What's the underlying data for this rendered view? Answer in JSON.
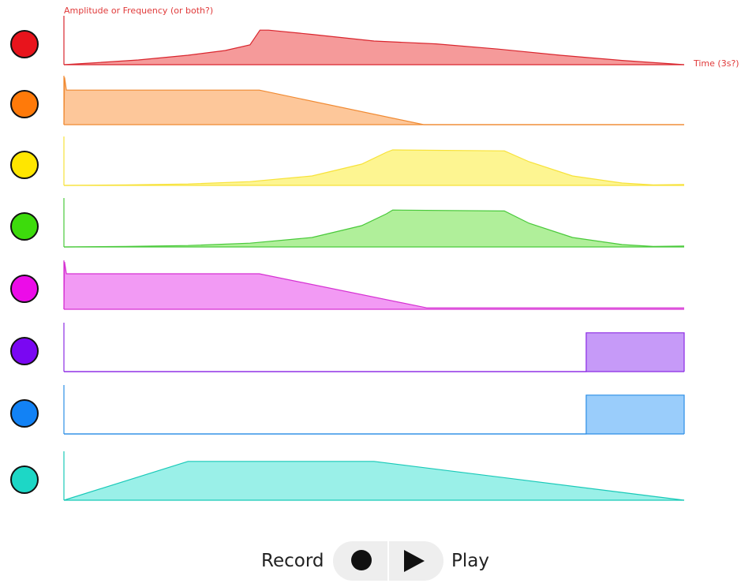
{
  "axis": {
    "y_label": "Amplitude or Frequency (or both?)",
    "x_label": "Time (3s?)",
    "label_color": "#e03a3a"
  },
  "tracks": [
    {
      "name": "red",
      "dot_color": "#e8141c",
      "line_color": "#d9262e",
      "fill_color": "#f59a9a",
      "envelope": [
        [
          0,
          0.0
        ],
        [
          0.05,
          0.04
        ],
        [
          0.12,
          0.1
        ],
        [
          0.2,
          0.2
        ],
        [
          0.26,
          0.3
        ],
        [
          0.3,
          0.42
        ],
        [
          0.316,
          0.73
        ],
        [
          0.33,
          0.73
        ],
        [
          0.4,
          0.64
        ],
        [
          0.5,
          0.5
        ],
        [
          0.6,
          0.44
        ],
        [
          0.7,
          0.33
        ],
        [
          0.8,
          0.2
        ],
        [
          0.9,
          0.09
        ],
        [
          1.0,
          0.0
        ]
      ]
    },
    {
      "name": "orange",
      "dot_color": "#ff7a0a",
      "line_color": "#f08a32",
      "fill_color": "#fdc79a",
      "envelope": [
        [
          0,
          0.0
        ],
        [
          0.001,
          1.0
        ],
        [
          0.004,
          0.73
        ],
        [
          0.315,
          0.73
        ],
        [
          0.58,
          0.0
        ],
        [
          1.0,
          0.0
        ]
      ]
    },
    {
      "name": "yellow",
      "dot_color": "#ffe600",
      "line_color": "#f7e23a",
      "fill_color": "#fdf591",
      "envelope": [
        [
          0,
          0.0
        ],
        [
          0.1,
          0.01
        ],
        [
          0.2,
          0.03
        ],
        [
          0.3,
          0.08
        ],
        [
          0.4,
          0.2
        ],
        [
          0.48,
          0.45
        ],
        [
          0.52,
          0.7
        ],
        [
          0.53,
          0.75
        ],
        [
          0.71,
          0.73
        ],
        [
          0.75,
          0.5
        ],
        [
          0.82,
          0.2
        ],
        [
          0.9,
          0.05
        ],
        [
          0.95,
          0.01
        ],
        [
          1.0,
          0.02
        ]
      ]
    },
    {
      "name": "green",
      "dot_color": "#3ddb0c",
      "line_color": "#49c93a",
      "fill_color": "#b0ef9a",
      "envelope": [
        [
          0,
          0.0
        ],
        [
          0.1,
          0.01
        ],
        [
          0.2,
          0.03
        ],
        [
          0.3,
          0.08
        ],
        [
          0.4,
          0.2
        ],
        [
          0.48,
          0.45
        ],
        [
          0.52,
          0.7
        ],
        [
          0.53,
          0.78
        ],
        [
          0.71,
          0.76
        ],
        [
          0.75,
          0.5
        ],
        [
          0.82,
          0.2
        ],
        [
          0.9,
          0.05
        ],
        [
          0.95,
          0.01
        ],
        [
          1.0,
          0.02
        ]
      ]
    },
    {
      "name": "magenta",
      "dot_color": "#ec0ce8",
      "line_color": "#d531d2",
      "fill_color": "#f29af4",
      "envelope": [
        [
          0,
          0.0
        ],
        [
          0.001,
          1.0
        ],
        [
          0.004,
          0.75
        ],
        [
          0.315,
          0.75
        ],
        [
          0.585,
          0.03
        ],
        [
          1.0,
          0.03
        ]
      ]
    },
    {
      "name": "purple",
      "dot_color": "#7a07f2",
      "line_color": "#8b2ae4",
      "fill_color": "#c69af8",
      "envelope": [
        [
          0,
          0.0
        ],
        [
          0.3,
          0.0
        ],
        [
          0.5,
          0.0
        ],
        [
          0.842,
          0.0
        ],
        [
          0.842,
          0.82
        ],
        [
          1.0,
          0.82
        ],
        [
          1.0,
          0.0
        ]
      ]
    },
    {
      "name": "blue",
      "dot_color": "#1282f5",
      "line_color": "#2c8ee6",
      "fill_color": "#9acdfb",
      "envelope": [
        [
          0,
          0.0
        ],
        [
          0.3,
          0.0
        ],
        [
          0.5,
          0.0
        ],
        [
          0.842,
          0.0
        ],
        [
          0.842,
          0.82
        ],
        [
          1.0,
          0.82
        ],
        [
          1.0,
          0.0
        ]
      ]
    },
    {
      "name": "teal",
      "dot_color": "#1dd7c6",
      "line_color": "#19c9b8",
      "fill_color": "#9af0e8",
      "envelope": [
        [
          0,
          0.0
        ],
        [
          0.2,
          0.82
        ],
        [
          0.5,
          0.82
        ],
        [
          1.0,
          0.0
        ]
      ]
    }
  ],
  "controls": {
    "record_label": "Record",
    "play_label": "Play"
  }
}
